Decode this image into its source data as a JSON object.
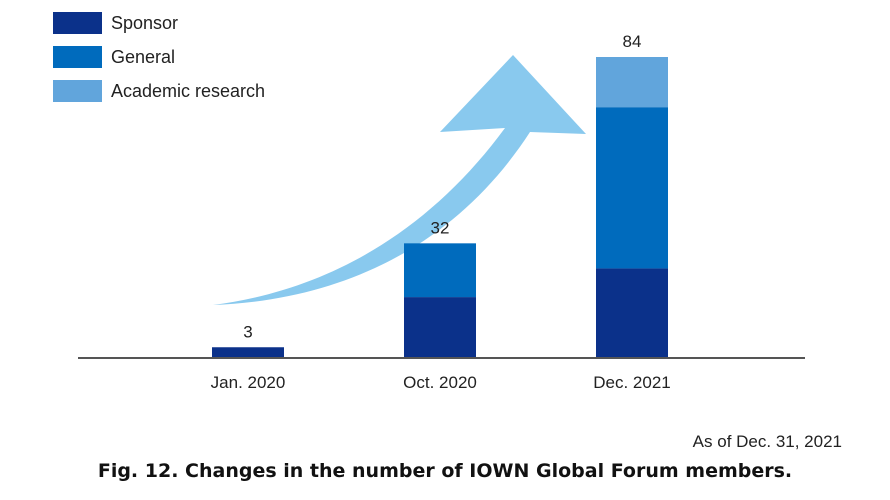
{
  "chart_data": {
    "type": "bar",
    "stacked": true,
    "categories": [
      "Jan. 2020",
      "Oct. 2020",
      "Dec. 2021"
    ],
    "series": [
      {
        "name": "Sponsor",
        "values": [
          3,
          17,
          25
        ],
        "color": "#0b318a"
      },
      {
        "name": "General",
        "values": [
          0,
          15,
          45
        ],
        "color": "#006bbd"
      },
      {
        "name": "Academic research",
        "values": [
          0,
          0,
          14
        ],
        "color": "#61a5dc"
      }
    ],
    "totals": [
      3,
      32,
      84
    ],
    "ylim": [
      0,
      84
    ],
    "legend_position": "top-left",
    "grid": false,
    "annotation": "upward arrow",
    "arrow_color": "#89c9ee"
  },
  "note": "As of Dec. 31, 2021",
  "caption": "Fig. 12. Changes in the number of IOWN Global Forum members."
}
